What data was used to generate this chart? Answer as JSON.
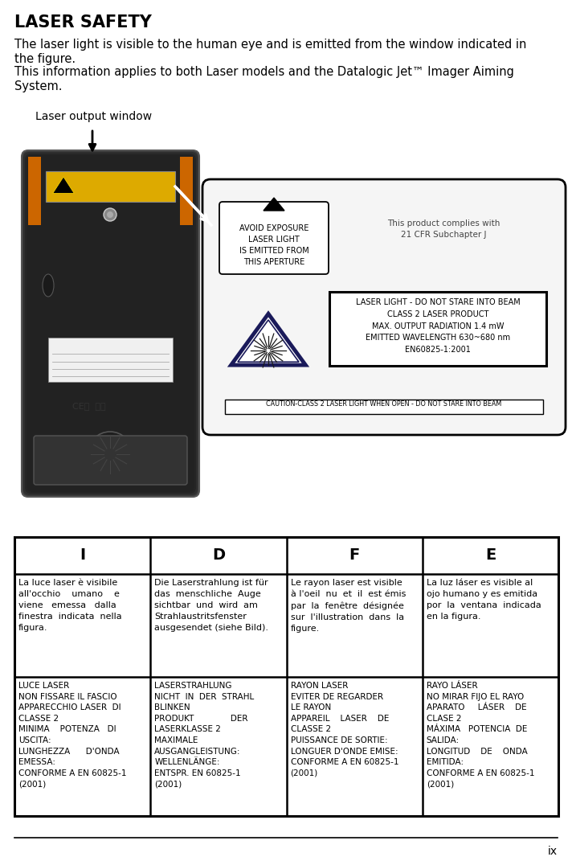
{
  "title": "LASER SAFETY",
  "intro_line1": "The laser light is visible to the human eye and is emitted from the window indicated in",
  "intro_line2": "the figure.",
  "intro_line3": "This information applies to both Laser models and the Datalogic Jet™ Imager Aiming",
  "intro_line4": "System.",
  "label_window": "Laser output window",
  "page_num": "ix",
  "bg_color": "#ffffff",
  "text_color": "#000000",
  "table_headers": [
    "I",
    "D",
    "F",
    "E"
  ],
  "table_row1_I": "La luce laser è visibile\nall'occhio    umano    e\nviene   emessa   dalla\nfinestra  indicata  nella\nfigura.",
  "table_row1_D": "Die Laserstrahlung ist für\ndas  menschliche  Auge\nsichtbar  und  wird  am\nStrahlaustritsfenster\nausgesendet (siehe Bild).",
  "table_row1_F": "Le rayon laser est visible\nà l'oeil  nu  et  il  est émis\npar  la  fenêtre  désignée\nsur  l'illustration  dans  la\nfigure.",
  "table_row1_E": "La luz láser es visible al\nojo humano y es emitida\npor  la  ventana  indicada\nen la figura.",
  "table_row2_I": "LUCE LASER\nNON FISSARE IL FASCIO\nAPPARECCHIO LASER  DI\nCLASSE 2\nMINIMA    POTENZA   DI\nUSCITA:\nLUNGHEZZA      D'ONDA\nEMESSA:\nCONFORME A EN 60825-1\n(2001)",
  "table_row2_D": "LASERSTRAHLUNG\nNICHT  IN  DER  STRAHL\nBLINKEN\nPRODUKT              DER\nLASERKLASSE 2\nMAXIMALE\nAUSGANGLEISTUNG:\nWELLENLÄNGE:\nENTSPR. EN 60825-1\n(2001)",
  "table_row2_F": "RAYON LASER\nEVITER DE REGARDER\nLE RAYON\nAPPAREIL    LASER    DE\nCLASSE 2\nPUISSANCE DE SORTIE:\nLONGUER D'ONDE EMISE:\nCONFORME A EN 60825-1\n(2001)",
  "table_row2_E": "RAYO LÁSER\nNO MIRAR FIJO EL RAYO\nAPARATO     LÁSER    DE\nCLASE 2\nMÁXIMA   POTENCIA  DE\nSALIDA:\nLONGITUD    DE    ONDA\nEMITIDA:\nCONFORME A EN 60825-1\n(2001)",
  "label_box_avoid": "AVOID EXPOSURE\nLASER LIGHT\nIS EMITTED FROM\nTHIS APERTURE",
  "label_complies": "This product complies with\n21 CFR Subchapter J",
  "label_laser_box": "LASER LIGHT - DO NOT STARE INTO BEAM\nCLASS 2 LASER PRODUCT\nMAX. OUTPUT RADIATION 1.4 mW\nEMITTED WAVELENGTH 630~680 nm\nEN60825-1:2001",
  "label_caution": "CAUTION-CLASS 2 LASER LIGHT WHEN OPEN - DO NOT STARE INTO BEAM",
  "device_body_color": "#2a2a2a",
  "device_edge_color": "#444444",
  "orange_color": "#cc6600",
  "yellow_label_color": "#ddaa00"
}
